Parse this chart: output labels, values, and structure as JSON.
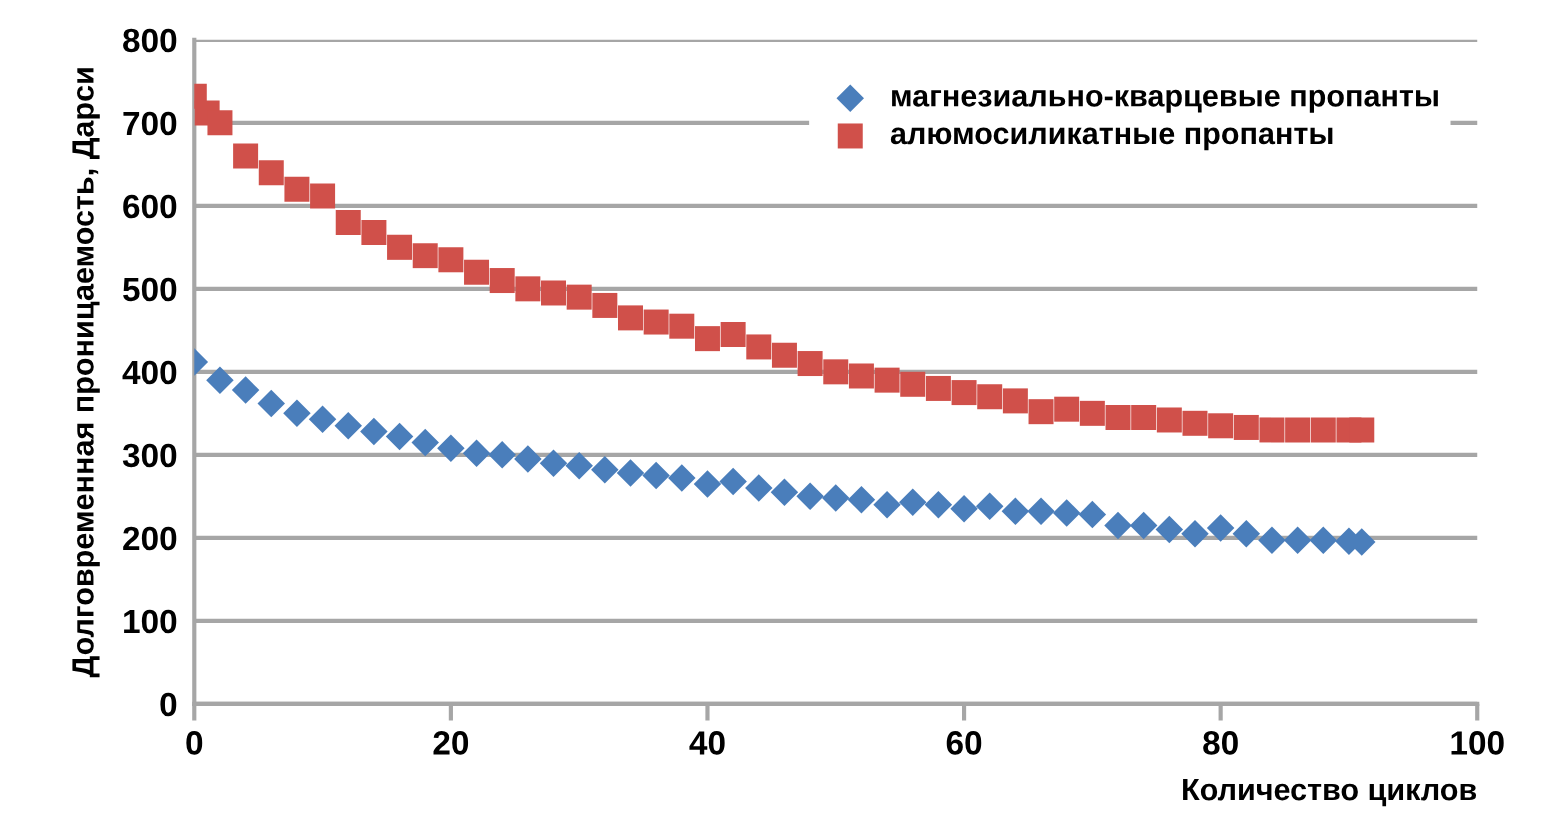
{
  "chart_data": {
    "type": "scatter",
    "xlabel": "Количество циклов",
    "ylabel": "Долговременная проницаемость, Дарси",
    "xlim": [
      0,
      100
    ],
    "xticks": [
      0,
      20,
      40,
      60,
      80,
      100
    ],
    "ylim": [
      0,
      800
    ],
    "yticks": [
      0,
      100,
      200,
      300,
      400,
      500,
      600,
      700,
      800
    ],
    "grid": "y",
    "legend": "top right",
    "series": [
      {
        "name": "магнезиально-кварцевые пропанты",
        "color": "#4a7ebb",
        "marker": "diamond",
        "x": [
          0,
          2,
          4,
          6,
          8,
          10,
          12,
          14,
          16,
          18,
          20,
          22,
          24,
          26,
          28,
          30,
          32,
          34,
          36,
          38,
          40,
          42,
          44,
          46,
          48,
          50,
          52,
          54,
          56,
          58,
          60,
          62,
          64,
          66,
          68,
          70,
          72,
          74,
          76,
          78,
          80,
          82,
          84,
          86,
          88,
          90,
          91
        ],
        "values": [
          412,
          390,
          378,
          362,
          350,
          343,
          335,
          328,
          322,
          315,
          308,
          302,
          300,
          295,
          290,
          287,
          282,
          278,
          275,
          272,
          265,
          268,
          260,
          255,
          250,
          248,
          246,
          240,
          243,
          240,
          235,
          238,
          232,
          232,
          230,
          228,
          215,
          215,
          210,
          205,
          212,
          205,
          197,
          197,
          197,
          196,
          195
        ]
      },
      {
        "name": "алюмосиликатные пропанты",
        "color": "#d0504a",
        "marker": "square",
        "x": [
          0,
          1,
          2,
          4,
          6,
          8,
          10,
          12,
          14,
          16,
          18,
          20,
          22,
          24,
          26,
          28,
          30,
          32,
          34,
          36,
          38,
          40,
          42,
          44,
          46,
          48,
          50,
          52,
          54,
          56,
          58,
          60,
          62,
          64,
          66,
          68,
          70,
          72,
          74,
          76,
          78,
          80,
          82,
          84,
          86,
          88,
          90,
          91
        ],
        "values": [
          732,
          712,
          700,
          660,
          640,
          620,
          612,
          580,
          568,
          550,
          540,
          535,
          520,
          510,
          500,
          495,
          490,
          480,
          465,
          460,
          455,
          440,
          445,
          430,
          420,
          410,
          400,
          395,
          390,
          385,
          380,
          375,
          370,
          365,
          352,
          355,
          350,
          345,
          345,
          342,
          338,
          335,
          333,
          330,
          330,
          330,
          330,
          330
        ]
      }
    ]
  }
}
